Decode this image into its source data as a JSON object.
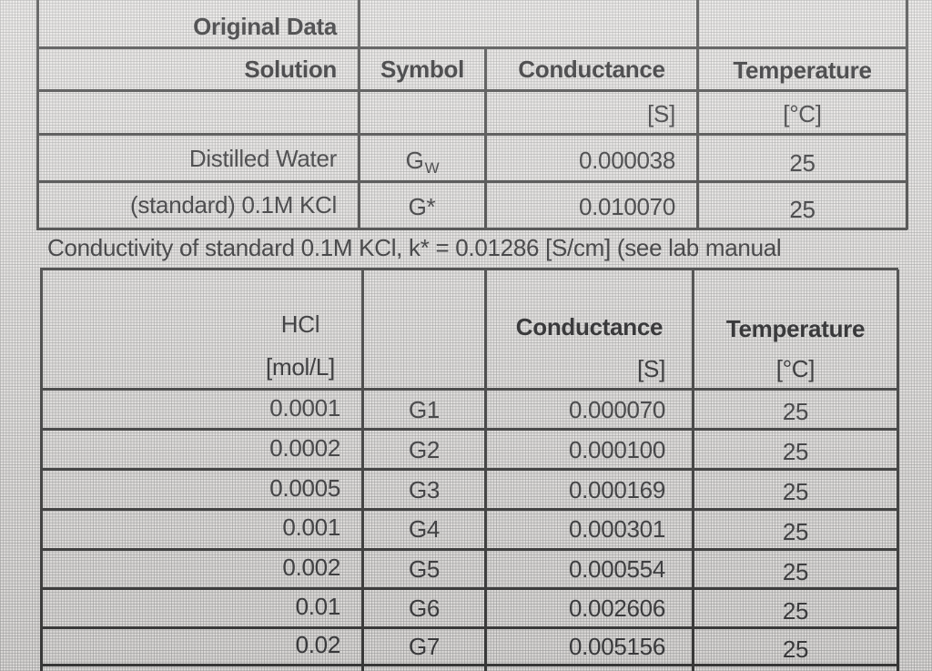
{
  "original_data": {
    "title": "Original Data",
    "headers": {
      "solution": "Solution",
      "symbol": "Symbol",
      "conductance": "Conductance",
      "temperature": "Temperature",
      "conductance_unit": "[S]",
      "temperature_unit": "[°C]"
    },
    "rows": [
      {
        "solution": "Distilled Water",
        "symbol_main": "G",
        "symbol_sub": "W",
        "conductance": "0.000038",
        "temperature": "25"
      },
      {
        "solution": "(standard) 0.1M KCl",
        "symbol_main": "G*",
        "symbol_sub": "",
        "conductance": "0.010070",
        "temperature": "25"
      }
    ]
  },
  "note": "Conductivity of standard 0.1M KCl, k* = 0.01286 [S/cm] (see lab manual",
  "hcl_data": {
    "headers": {
      "hcl": "HCl",
      "hcl_unit": "[mol/L]",
      "conductance": "Conductance",
      "conductance_unit": "[S]",
      "temperature": "Temperature",
      "temperature_unit": "[°C]"
    },
    "rows": [
      {
        "conc": "0.0001",
        "symbol": "G1",
        "conductance": "0.000070",
        "temperature": "25"
      },
      {
        "conc": "0.0002",
        "symbol": "G2",
        "conductance": "0.000100",
        "temperature": "25"
      },
      {
        "conc": "0.0005",
        "symbol": "G3",
        "conductance": "0.000169",
        "temperature": "25"
      },
      {
        "conc": "0.001",
        "symbol": "G4",
        "conductance": "0.000301",
        "temperature": "25"
      },
      {
        "conc": "0.002",
        "symbol": "G5",
        "conductance": "0.000554",
        "temperature": "25"
      },
      {
        "conc": "0.01",
        "symbol": "G6",
        "conductance": "0.002606",
        "temperature": "25"
      },
      {
        "conc": "0.02",
        "symbol": "G7",
        "conductance": "0.005156",
        "temperature": "25"
      }
    ]
  }
}
